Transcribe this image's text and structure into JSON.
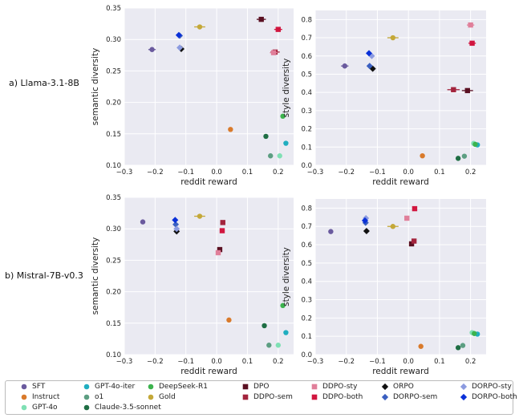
{
  "rows": [
    {
      "label": "a) Llama-3.1-8B"
    },
    {
      "label": "b) Mistral-7B-v0.3"
    }
  ],
  "legend": [
    {
      "name": "SFT",
      "color": "#6a5a9e",
      "marker": "circle"
    },
    {
      "name": "Instruct",
      "color": "#d97a2b",
      "marker": "circle"
    },
    {
      "name": "GPT-4o",
      "color": "#7fe0b4",
      "marker": "circle"
    },
    {
      "name": "GPT-4o-iter",
      "color": "#20aec0",
      "marker": "circle"
    },
    {
      "name": "o1",
      "color": "#5c9e82",
      "marker": "circle"
    },
    {
      "name": "Claude-3.5-sonnet",
      "color": "#1f6e44",
      "marker": "circle"
    },
    {
      "name": "DeepSeek-R1",
      "color": "#3cb34e",
      "marker": "circle"
    },
    {
      "name": "Gold",
      "color": "#c4a838",
      "marker": "circle"
    },
    {
      "name": "DPO",
      "color": "#5a1022",
      "marker": "square"
    },
    {
      "name": "DDPO-sem",
      "color": "#a3243d",
      "marker": "square"
    },
    {
      "name": "DDPO-sty",
      "color": "#e07f9a",
      "marker": "square"
    },
    {
      "name": "DDPO-both",
      "color": "#d1163f",
      "marker": "square"
    },
    {
      "name": "ORPO",
      "color": "#111111",
      "marker": "diamond"
    },
    {
      "name": "DORPO-sem",
      "color": "#3a5fc0",
      "marker": "diamond"
    },
    {
      "name": "DORPO-sty",
      "color": "#8c9be0",
      "marker": "diamond"
    },
    {
      "name": "DORPO-both",
      "color": "#0a30d8",
      "marker": "diamond"
    }
  ],
  "chart_data": [
    {
      "type": "scatter",
      "row": 0,
      "col": 0,
      "xlabel": "reddit reward",
      "ylabel": "semantic diversity",
      "xlim": [
        -0.3,
        0.25
      ],
      "ylim": [
        0.1,
        0.35
      ],
      "xticks": [
        "−0.3",
        "−0.2",
        "−0.1",
        "0.0",
        "0.1",
        "0.2"
      ],
      "yticks": [
        "0.10",
        "0.15",
        "0.20",
        "0.25",
        "0.30",
        "0.35"
      ],
      "points": [
        {
          "series": "SFT",
          "x": -0.21,
          "y": 0.284,
          "xerr": 0.012
        },
        {
          "series": "Instruct",
          "x": 0.045,
          "y": 0.157
        },
        {
          "series": "GPT-4o",
          "x": 0.205,
          "y": 0.115
        },
        {
          "series": "GPT-4o-iter",
          "x": 0.225,
          "y": 0.135
        },
        {
          "series": "o1",
          "x": 0.175,
          "y": 0.115
        },
        {
          "series": "Claude-3.5-sonnet",
          "x": 0.16,
          "y": 0.146
        },
        {
          "series": "DeepSeek-R1",
          "x": 0.215,
          "y": 0.178
        },
        {
          "series": "Gold",
          "x": -0.055,
          "y": 0.32,
          "xerr": 0.018
        },
        {
          "series": "DPO",
          "x": 0.145,
          "y": 0.332,
          "xerr": 0.015
        },
        {
          "series": "DDPO-sem",
          "x": 0.19,
          "y": 0.28,
          "xerr": 0.015
        },
        {
          "series": "DDPO-sty",
          "x": 0.185,
          "y": 0.279,
          "xerr": 0.012
        },
        {
          "series": "DDPO-both",
          "x": 0.2,
          "y": 0.316,
          "xerr": 0.013
        },
        {
          "series": "ORPO",
          "x": -0.115,
          "y": 0.285
        },
        {
          "series": "DORPO-sem",
          "x": -0.12,
          "y": 0.306
        },
        {
          "series": "DORPO-sty",
          "x": -0.12,
          "y": 0.287
        },
        {
          "series": "DORPO-both",
          "x": -0.123,
          "y": 0.307
        }
      ]
    },
    {
      "type": "scatter",
      "row": 0,
      "col": 1,
      "xlabel": "reddit reward",
      "ylabel": "style diversity",
      "xlim": [
        -0.3,
        0.25
      ],
      "ylim": [
        0.0,
        0.85
      ],
      "xticks": [
        "−0.3",
        "−0.2",
        "−0.1",
        "0.0",
        "0.1",
        "0.2"
      ],
      "yticks": [
        "0.0",
        "0.1",
        "0.2",
        "0.3",
        "0.4",
        "0.5",
        "0.6",
        "0.7",
        "0.8"
      ],
      "points": [
        {
          "series": "SFT",
          "x": -0.205,
          "y": 0.545,
          "xerr": 0.012
        },
        {
          "series": "Instruct",
          "x": 0.045,
          "y": 0.052
        },
        {
          "series": "GPT-4o",
          "x": 0.21,
          "y": 0.12
        },
        {
          "series": "GPT-4o-iter",
          "x": 0.222,
          "y": 0.112
        },
        {
          "series": "o1",
          "x": 0.18,
          "y": 0.05
        },
        {
          "series": "Claude-3.5-sonnet",
          "x": 0.16,
          "y": 0.038
        },
        {
          "series": "DeepSeek-R1",
          "x": 0.215,
          "y": 0.115
        },
        {
          "series": "Gold",
          "x": -0.05,
          "y": 0.7,
          "xerr": 0.018
        },
        {
          "series": "DPO",
          "x": 0.19,
          "y": 0.41,
          "xerr": 0.018
        },
        {
          "series": "DDPO-sem",
          "x": 0.145,
          "y": 0.415,
          "xerr": 0.02
        },
        {
          "series": "DDPO-sty",
          "x": 0.2,
          "y": 0.77,
          "xerr": 0.012
        },
        {
          "series": "DDPO-both",
          "x": 0.205,
          "y": 0.67,
          "xerr": 0.012
        },
        {
          "series": "ORPO",
          "x": -0.115,
          "y": 0.53
        },
        {
          "series": "DORPO-sem",
          "x": -0.125,
          "y": 0.545
        },
        {
          "series": "DORPO-sty",
          "x": -0.118,
          "y": 0.6
        },
        {
          "series": "DORPO-both",
          "x": -0.127,
          "y": 0.615
        }
      ]
    },
    {
      "type": "scatter",
      "row": 1,
      "col": 0,
      "xlabel": "reddit reward",
      "ylabel": "semantic diversity",
      "xlim": [
        -0.3,
        0.25
      ],
      "ylim": [
        0.1,
        0.35
      ],
      "xticks": [
        "−0.3",
        "−0.2",
        "−0.1",
        "0.0",
        "0.1",
        "0.2"
      ],
      "yticks": [
        "0.10",
        "0.15",
        "0.20",
        "0.25",
        "0.30",
        "0.35"
      ],
      "points": [
        {
          "series": "SFT",
          "x": -0.24,
          "y": 0.311
        },
        {
          "series": "Instruct",
          "x": 0.04,
          "y": 0.155
        },
        {
          "series": "GPT-4o",
          "x": 0.2,
          "y": 0.115
        },
        {
          "series": "GPT-4o-iter",
          "x": 0.225,
          "y": 0.135
        },
        {
          "series": "o1",
          "x": 0.17,
          "y": 0.115
        },
        {
          "series": "Claude-3.5-sonnet",
          "x": 0.155,
          "y": 0.146
        },
        {
          "series": "DeepSeek-R1",
          "x": 0.215,
          "y": 0.178
        },
        {
          "series": "Gold",
          "x": -0.055,
          "y": 0.32,
          "xerr": 0.018
        },
        {
          "series": "DPO",
          "x": 0.01,
          "y": 0.267
        },
        {
          "series": "DDPO-sem",
          "x": 0.02,
          "y": 0.31
        },
        {
          "series": "DDPO-sty",
          "x": 0.005,
          "y": 0.262
        },
        {
          "series": "DDPO-both",
          "x": 0.018,
          "y": 0.297
        },
        {
          "series": "ORPO",
          "x": -0.13,
          "y": 0.296
        },
        {
          "series": "DORPO-sem",
          "x": -0.133,
          "y": 0.307
        },
        {
          "series": "DORPO-sty",
          "x": -0.13,
          "y": 0.3
        },
        {
          "series": "DORPO-both",
          "x": -0.135,
          "y": 0.314
        }
      ]
    },
    {
      "type": "scatter",
      "row": 1,
      "col": 1,
      "xlabel": "reddit reward",
      "ylabel": "style diversity",
      "xlim": [
        -0.3,
        0.25
      ],
      "ylim": [
        0.0,
        0.85
      ],
      "xticks": [
        "−0.3",
        "−0.2",
        "−0.1",
        "0.0",
        "0.1",
        "0.2"
      ],
      "yticks": [
        "0.0",
        "0.1",
        "0.2",
        "0.3",
        "0.4",
        "0.5",
        "0.6",
        "0.7",
        "0.8"
      ],
      "points": [
        {
          "series": "SFT",
          "x": -0.25,
          "y": 0.672
        },
        {
          "series": "Instruct",
          "x": 0.04,
          "y": 0.045
        },
        {
          "series": "GPT-4o",
          "x": 0.205,
          "y": 0.12
        },
        {
          "series": "GPT-4o-iter",
          "x": 0.222,
          "y": 0.112
        },
        {
          "series": "o1",
          "x": 0.175,
          "y": 0.05
        },
        {
          "series": "Claude-3.5-sonnet",
          "x": 0.16,
          "y": 0.038
        },
        {
          "series": "DeepSeek-R1",
          "x": 0.212,
          "y": 0.115
        },
        {
          "series": "Gold",
          "x": -0.05,
          "y": 0.7,
          "xerr": 0.018
        },
        {
          "series": "DPO",
          "x": 0.01,
          "y": 0.605
        },
        {
          "series": "DDPO-sem",
          "x": 0.018,
          "y": 0.62
        },
        {
          "series": "DDPO-sty",
          "x": -0.005,
          "y": 0.745
        },
        {
          "series": "DDPO-both",
          "x": 0.02,
          "y": 0.797
        },
        {
          "series": "ORPO",
          "x": -0.135,
          "y": 0.675
        },
        {
          "series": "DORPO-sem",
          "x": -0.138,
          "y": 0.72
        },
        {
          "series": "DORPO-sty",
          "x": -0.137,
          "y": 0.745
        },
        {
          "series": "DORPO-both",
          "x": -0.14,
          "y": 0.732
        }
      ]
    }
  ]
}
